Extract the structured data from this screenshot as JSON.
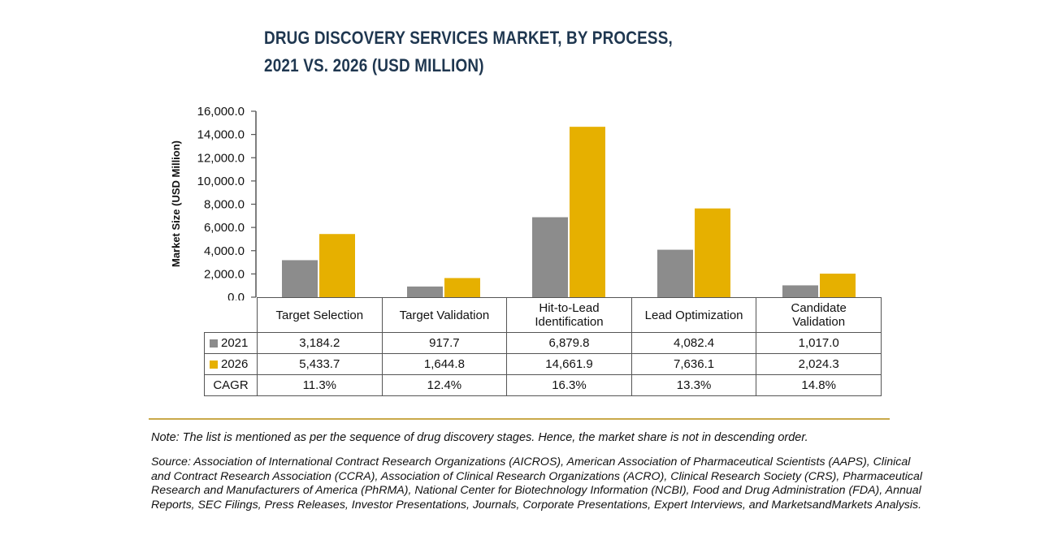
{
  "chart_data": {
    "type": "bar",
    "title_line1": "DRUG DISCOVERY SERVICES MARKET, BY PROCESS,",
    "title_line2": "2021 VS. 2026 (USD MILLION)",
    "ylabel": "Market Size (USD Million)",
    "xlabel": "",
    "ylim": [
      0,
      16000
    ],
    "yticks": [
      0,
      2000,
      4000,
      6000,
      8000,
      10000,
      12000,
      14000,
      16000
    ],
    "ytick_labels": [
      "0.0",
      "2,000.0",
      "4,000.0",
      "6,000.0",
      "8,000.0",
      "10,000.0",
      "12,000.0",
      "14,000.0",
      "16,000.0"
    ],
    "grid": false,
    "categories": [
      [
        "Target Selection"
      ],
      [
        "Target Validation"
      ],
      [
        "Hit-to-Lead",
        "Identification"
      ],
      [
        "Lead Optimization"
      ],
      [
        "Candidate",
        "Validation"
      ]
    ],
    "series": [
      {
        "name": "2021",
        "color": "#8c8c8c",
        "values": [
          3184.2,
          917.7,
          6879.8,
          4082.4,
          1017.0
        ],
        "labels": [
          "3,184.2",
          "917.7",
          "6,879.8",
          "4,082.4",
          "1,017.0"
        ]
      },
      {
        "name": "2026",
        "color": "#e6b000",
        "values": [
          5433.7,
          1644.8,
          14661.9,
          7636.1,
          2024.3
        ],
        "labels": [
          "5,433.7",
          "1,644.8",
          "14,661.9",
          "7,636.1",
          "2,024.3"
        ]
      }
    ],
    "cagr": {
      "label": "CAGR",
      "values": [
        "11.3%",
        "12.4%",
        "16.3%",
        "13.3%",
        "14.8%"
      ]
    }
  },
  "footer": {
    "note": "Note: The list is mentioned as per the sequence of drug discovery stages. Hence, the market share is not in descending order.",
    "source": "Source: Association of International Contract Research Organizations (AICROS), American Association of Pharmaceutical Scientists (AAPS), Clinical and Contract Research Association (CCRA), Association of Clinical Research Organizations (ACRO), Clinical Research Society (CRS), Pharmaceutical Research and Manufacturers of America (PhRMA), National Center for Biotechnology Information (NCBI), Food and Drug Administration (FDA), Annual Reports, SEC Filings, Press Releases, Investor Presentations, Journals, Corporate Presentations, Expert Interviews, and MarketsandMarkets Analysis."
  }
}
